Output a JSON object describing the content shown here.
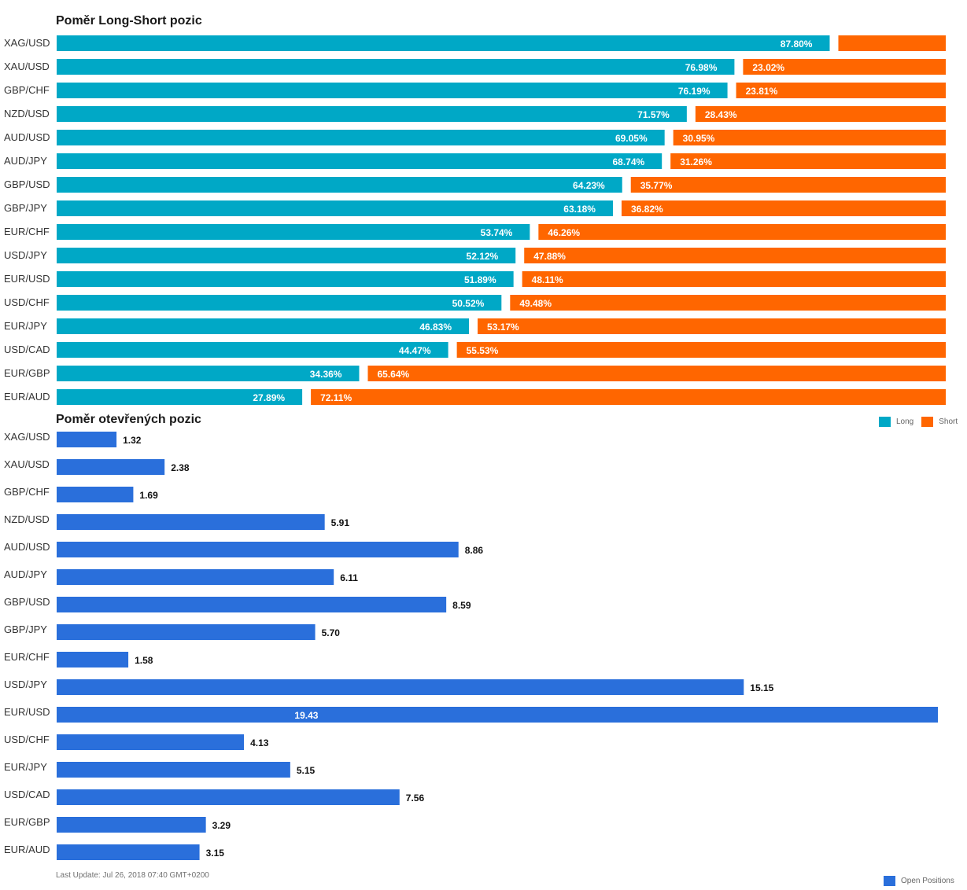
{
  "chart_data": [
    {
      "type": "bar",
      "orientation": "horizontal",
      "stacked": true,
      "title": "Poměr Long-Short pozic",
      "categories": [
        "XAG/USD",
        "XAU/USD",
        "GBP/CHF",
        "NZD/USD",
        "AUD/USD",
        "AUD/JPY",
        "GBP/USD",
        "GBP/JPY",
        "EUR/CHF",
        "USD/JPY",
        "EUR/USD",
        "USD/CHF",
        "EUR/JPY",
        "USD/CAD",
        "EUR/GBP",
        "EUR/AUD"
      ],
      "series": [
        {
          "name": "Long",
          "color": "#00a8c6",
          "values": [
            87.8,
            76.98,
            76.19,
            71.57,
            69.05,
            68.74,
            64.23,
            63.18,
            53.74,
            52.12,
            51.89,
            50.52,
            46.83,
            44.47,
            34.36,
            27.89
          ]
        },
        {
          "name": "Short",
          "color": "#ff6600",
          "values": [
            12.2,
            23.02,
            23.81,
            28.43,
            30.95,
            31.26,
            35.77,
            36.82,
            46.26,
            47.88,
            48.11,
            49.48,
            53.17,
            55.53,
            65.64,
            72.11
          ]
        }
      ],
      "hidden_labels": [
        "12.20%"
      ],
      "ylim": [
        0,
        100
      ],
      "value_suffix": "%",
      "legend_position": "right"
    },
    {
      "type": "bar",
      "orientation": "horizontal",
      "title": "Poměr otevřených pozic",
      "categories": [
        "XAG/USD",
        "XAU/USD",
        "GBP/CHF",
        "NZD/USD",
        "AUD/USD",
        "AUD/JPY",
        "GBP/USD",
        "GBP/JPY",
        "EUR/CHF",
        "USD/JPY",
        "EUR/USD",
        "USD/CHF",
        "EUR/JPY",
        "USD/CAD",
        "EUR/GBP",
        "EUR/AUD"
      ],
      "series": [
        {
          "name": "Open Positions",
          "color": "#2a6fdb",
          "values": [
            1.32,
            2.38,
            1.69,
            5.91,
            8.86,
            6.11,
            8.59,
            5.7,
            1.58,
            15.15,
            19.43,
            4.13,
            5.15,
            7.56,
            3.29,
            3.15
          ]
        }
      ],
      "value_format": "2 decimals",
      "legend_position": "bottom-right"
    }
  ],
  "footer": "Last Update: Jul 26, 2018 07:40 GMT+0200"
}
